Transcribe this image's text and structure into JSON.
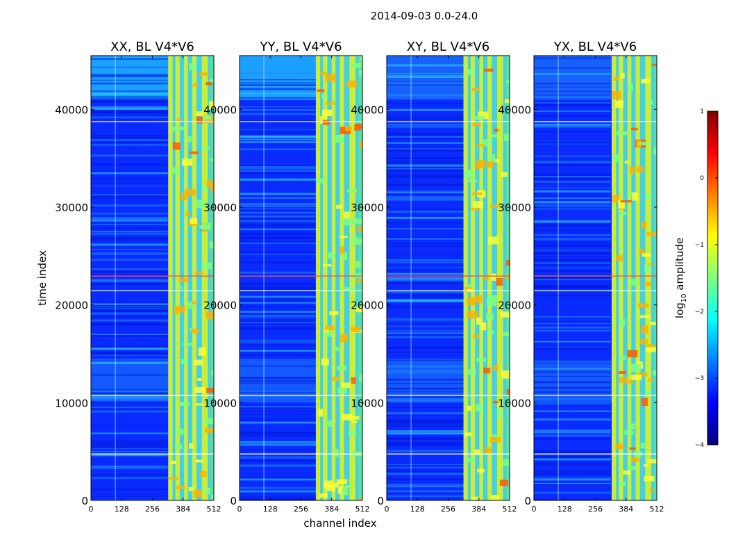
{
  "figure": {
    "suptitle": "2014-09-03 0.0-24.0"
  },
  "chart_data": [
    {
      "type": "heatmap",
      "title": "XX, BL V4*V6",
      "xlabel": "channel index",
      "ylabel": "time index",
      "xlim": [
        0,
        512
      ],
      "ylim": [
        0,
        45500
      ],
      "xticks": [
        0,
        128,
        256,
        384,
        512
      ],
      "yticks": [
        0,
        10000,
        20000,
        30000,
        40000
      ]
    },
    {
      "type": "heatmap",
      "title": "YY, BL V4*V6",
      "xlabel": "channel index",
      "ylabel": "time index",
      "xlim": [
        0,
        512
      ],
      "ylim": [
        0,
        45500
      ],
      "xticks": [
        0,
        128,
        256,
        384,
        512
      ],
      "yticks": [
        0,
        10000,
        20000,
        30000,
        40000
      ]
    },
    {
      "type": "heatmap",
      "title": "XY, BL V4*V6",
      "xlabel": "channel index",
      "ylabel": "time index",
      "xlim": [
        0,
        512
      ],
      "ylim": [
        0,
        45500
      ],
      "xticks": [
        0,
        128,
        256,
        384,
        512
      ],
      "yticks": [
        0,
        10000,
        20000,
        30000,
        40000
      ]
    },
    {
      "type": "heatmap",
      "title": "YX, BL V4*V6",
      "xlabel": "channel index",
      "ylabel": "time index",
      "xlim": [
        0,
        512
      ],
      "ylim": [
        0,
        45500
      ],
      "xticks": [
        0,
        128,
        256,
        384,
        512
      ],
      "yticks": [
        0,
        10000,
        20000,
        30000,
        40000
      ]
    }
  ],
  "axis_labels": {
    "x": "channel index",
    "y": "time index"
  },
  "colorbar": {
    "label_prefix": "log",
    "label_sub": "10",
    "label_suffix": " amplitude",
    "ticks": [
      1,
      0,
      -1,
      -2,
      -3,
      -4
    ],
    "tick_labels": [
      "1",
      "0",
      "−1",
      "−2",
      "−3",
      "−4"
    ],
    "range": [
      -4,
      1
    ],
    "colors": [
      "#00007f",
      "#0000ff",
      "#007fff",
      "#00ffff",
      "#7fff7f",
      "#ffff00",
      "#ff7f00",
      "#ff0000",
      "#7f0000"
    ]
  }
}
